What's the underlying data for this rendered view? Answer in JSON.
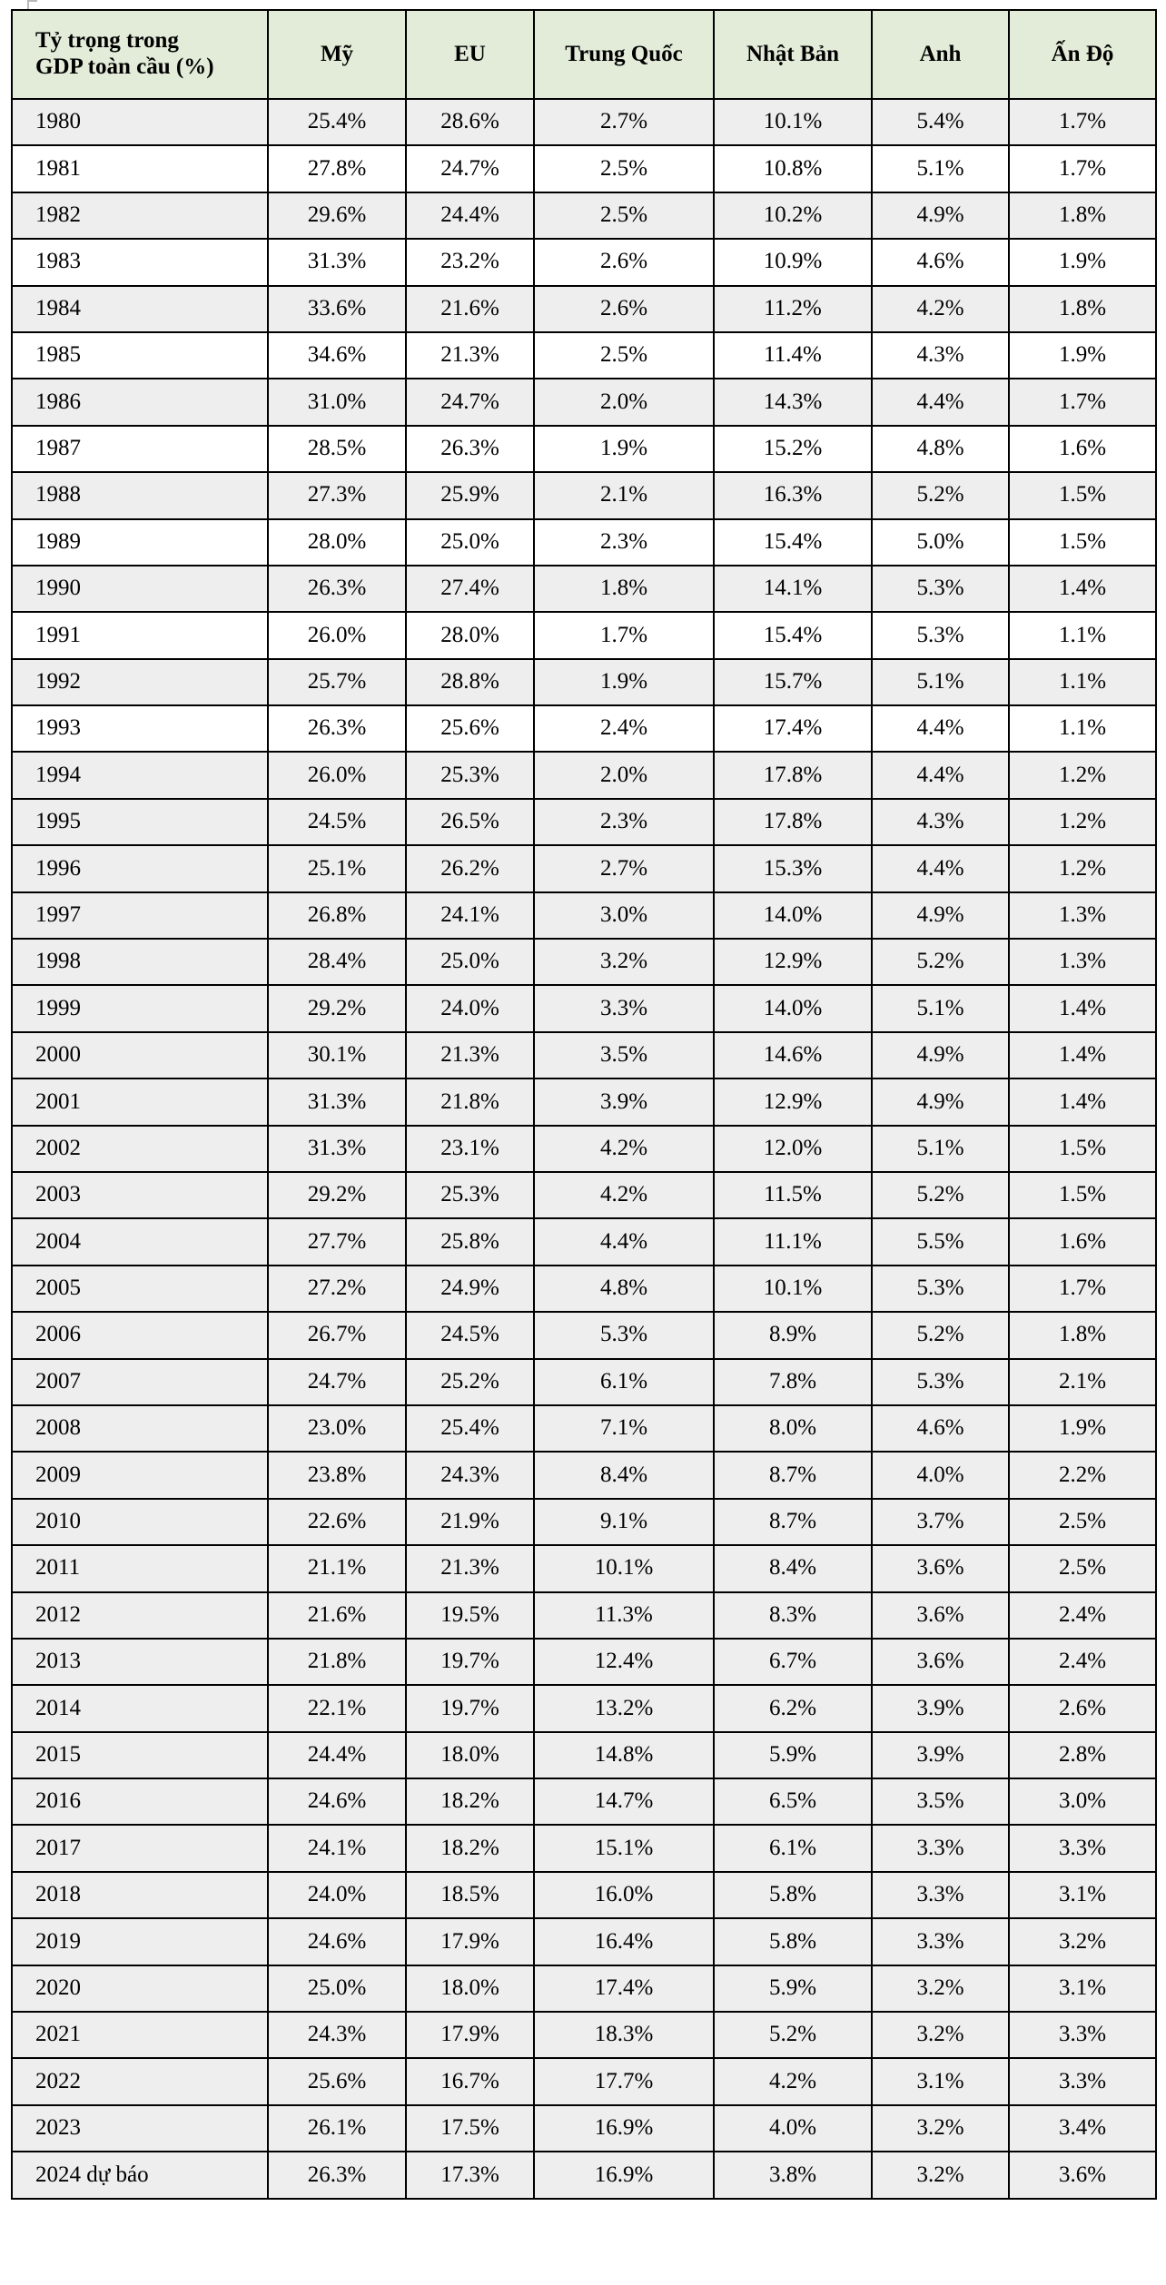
{
  "table": {
    "corner_label": "Tỷ trọng trong GDP toàn cầu (%)",
    "columns": [
      "Mỹ",
      "EU",
      "Trung Quốc",
      "Nhật Bản",
      "Anh",
      "Ấn Độ"
    ],
    "colors": {
      "header_bg": "#e2ecd8",
      "shaded_row_bg": "#eeeeee",
      "plain_row_bg": "#ffffff",
      "border": "#000000",
      "text": "#000000"
    },
    "rows": [
      {
        "year": "1980",
        "shaded": true,
        "values": [
          "25.4%",
          "28.6%",
          "2.7%",
          "10.1%",
          "5.4%",
          "1.7%"
        ]
      },
      {
        "year": "1981",
        "shaded": false,
        "values": [
          "27.8%",
          "24.7%",
          "2.5%",
          "10.8%",
          "5.1%",
          "1.7%"
        ]
      },
      {
        "year": "1982",
        "shaded": true,
        "values": [
          "29.6%",
          "24.4%",
          "2.5%",
          "10.2%",
          "4.9%",
          "1.8%"
        ]
      },
      {
        "year": "1983",
        "shaded": false,
        "values": [
          "31.3%",
          "23.2%",
          "2.6%",
          "10.9%",
          "4.6%",
          "1.9%"
        ]
      },
      {
        "year": "1984",
        "shaded": true,
        "values": [
          "33.6%",
          "21.6%",
          "2.6%",
          "11.2%",
          "4.2%",
          "1.8%"
        ]
      },
      {
        "year": "1985",
        "shaded": false,
        "values": [
          "34.6%",
          "21.3%",
          "2.5%",
          "11.4%",
          "4.3%",
          "1.9%"
        ]
      },
      {
        "year": "1986",
        "shaded": true,
        "values": [
          "31.0%",
          "24.7%",
          "2.0%",
          "14.3%",
          "4.4%",
          "1.7%"
        ]
      },
      {
        "year": "1987",
        "shaded": false,
        "values": [
          "28.5%",
          "26.3%",
          "1.9%",
          "15.2%",
          "4.8%",
          "1.6%"
        ]
      },
      {
        "year": "1988",
        "shaded": true,
        "values": [
          "27.3%",
          "25.9%",
          "2.1%",
          "16.3%",
          "5.2%",
          "1.5%"
        ]
      },
      {
        "year": "1989",
        "shaded": false,
        "values": [
          "28.0%",
          "25.0%",
          "2.3%",
          "15.4%",
          "5.0%",
          "1.5%"
        ]
      },
      {
        "year": "1990",
        "shaded": true,
        "values": [
          "26.3%",
          "27.4%",
          "1.8%",
          "14.1%",
          "5.3%",
          "1.4%"
        ]
      },
      {
        "year": "1991",
        "shaded": false,
        "values": [
          "26.0%",
          "28.0%",
          "1.7%",
          "15.4%",
          "5.3%",
          "1.1%"
        ]
      },
      {
        "year": "1992",
        "shaded": true,
        "values": [
          "25.7%",
          "28.8%",
          "1.9%",
          "15.7%",
          "5.1%",
          "1.1%"
        ]
      },
      {
        "year": "1993",
        "shaded": false,
        "values": [
          "26.3%",
          "25.6%",
          "2.4%",
          "17.4%",
          "4.4%",
          "1.1%"
        ]
      },
      {
        "year": "1994",
        "shaded": true,
        "values": [
          "26.0%",
          "25.3%",
          "2.0%",
          "17.8%",
          "4.4%",
          "1.2%"
        ]
      },
      {
        "year": "1995",
        "shaded": true,
        "values": [
          "24.5%",
          "26.5%",
          "2.3%",
          "17.8%",
          "4.3%",
          "1.2%"
        ]
      },
      {
        "year": "1996",
        "shaded": true,
        "values": [
          "25.1%",
          "26.2%",
          "2.7%",
          "15.3%",
          "4.4%",
          "1.2%"
        ]
      },
      {
        "year": "1997",
        "shaded": true,
        "values": [
          "26.8%",
          "24.1%",
          "3.0%",
          "14.0%",
          "4.9%",
          "1.3%"
        ]
      },
      {
        "year": "1998",
        "shaded": true,
        "values": [
          "28.4%",
          "25.0%",
          "3.2%",
          "12.9%",
          "5.2%",
          "1.3%"
        ]
      },
      {
        "year": "1999",
        "shaded": true,
        "values": [
          "29.2%",
          "24.0%",
          "3.3%",
          "14.0%",
          "5.1%",
          "1.4%"
        ]
      },
      {
        "year": "2000",
        "shaded": true,
        "values": [
          "30.1%",
          "21.3%",
          "3.5%",
          "14.6%",
          "4.9%",
          "1.4%"
        ]
      },
      {
        "year": "2001",
        "shaded": true,
        "values": [
          "31.3%",
          "21.8%",
          "3.9%",
          "12.9%",
          "4.9%",
          "1.4%"
        ]
      },
      {
        "year": "2002",
        "shaded": true,
        "values": [
          "31.3%",
          "23.1%",
          "4.2%",
          "12.0%",
          "5.1%",
          "1.5%"
        ]
      },
      {
        "year": "2003",
        "shaded": true,
        "values": [
          "29.2%",
          "25.3%",
          "4.2%",
          "11.5%",
          "5.2%",
          "1.5%"
        ]
      },
      {
        "year": "2004",
        "shaded": true,
        "values": [
          "27.7%",
          "25.8%",
          "4.4%",
          "11.1%",
          "5.5%",
          "1.6%"
        ]
      },
      {
        "year": "2005",
        "shaded": true,
        "values": [
          "27.2%",
          "24.9%",
          "4.8%",
          "10.1%",
          "5.3%",
          "1.7%"
        ]
      },
      {
        "year": "2006",
        "shaded": true,
        "values": [
          "26.7%",
          "24.5%",
          "5.3%",
          "8.9%",
          "5.2%",
          "1.8%"
        ]
      },
      {
        "year": "2007",
        "shaded": true,
        "values": [
          "24.7%",
          "25.2%",
          "6.1%",
          "7.8%",
          "5.3%",
          "2.1%"
        ]
      },
      {
        "year": "2008",
        "shaded": true,
        "values": [
          "23.0%",
          "25.4%",
          "7.1%",
          "8.0%",
          "4.6%",
          "1.9%"
        ]
      },
      {
        "year": "2009",
        "shaded": true,
        "values": [
          "23.8%",
          "24.3%",
          "8.4%",
          "8.7%",
          "4.0%",
          "2.2%"
        ]
      },
      {
        "year": "2010",
        "shaded": true,
        "values": [
          "22.6%",
          "21.9%",
          "9.1%",
          "8.7%",
          "3.7%",
          "2.5%"
        ]
      },
      {
        "year": "2011",
        "shaded": true,
        "values": [
          "21.1%",
          "21.3%",
          "10.1%",
          "8.4%",
          "3.6%",
          "2.5%"
        ]
      },
      {
        "year": "2012",
        "shaded": true,
        "values": [
          "21.6%",
          "19.5%",
          "11.3%",
          "8.3%",
          "3.6%",
          "2.4%"
        ]
      },
      {
        "year": "2013",
        "shaded": true,
        "values": [
          "21.8%",
          "19.7%",
          "12.4%",
          "6.7%",
          "3.6%",
          "2.4%"
        ]
      },
      {
        "year": "2014",
        "shaded": true,
        "values": [
          "22.1%",
          "19.7%",
          "13.2%",
          "6.2%",
          "3.9%",
          "2.6%"
        ]
      },
      {
        "year": "2015",
        "shaded": true,
        "values": [
          "24.4%",
          "18.0%",
          "14.8%",
          "5.9%",
          "3.9%",
          "2.8%"
        ]
      },
      {
        "year": "2016",
        "shaded": true,
        "values": [
          "24.6%",
          "18.2%",
          "14.7%",
          "6.5%",
          "3.5%",
          "3.0%"
        ]
      },
      {
        "year": "2017",
        "shaded": true,
        "values": [
          "24.1%",
          "18.2%",
          "15.1%",
          "6.1%",
          "3.3%",
          "3.3%"
        ]
      },
      {
        "year": "2018",
        "shaded": true,
        "values": [
          "24.0%",
          "18.5%",
          "16.0%",
          "5.8%",
          "3.3%",
          "3.1%"
        ]
      },
      {
        "year": "2019",
        "shaded": true,
        "values": [
          "24.6%",
          "17.9%",
          "16.4%",
          "5.8%",
          "3.3%",
          "3.2%"
        ]
      },
      {
        "year": "2020",
        "shaded": true,
        "values": [
          "25.0%",
          "18.0%",
          "17.4%",
          "5.9%",
          "3.2%",
          "3.1%"
        ]
      },
      {
        "year": "2021",
        "shaded": true,
        "values": [
          "24.3%",
          "17.9%",
          "18.3%",
          "5.2%",
          "3.2%",
          "3.3%"
        ]
      },
      {
        "year": "2022",
        "shaded": true,
        "values": [
          "25.6%",
          "16.7%",
          "17.7%",
          "4.2%",
          "3.1%",
          "3.3%"
        ]
      },
      {
        "year": "2023",
        "shaded": true,
        "values": [
          "26.1%",
          "17.5%",
          "16.9%",
          "4.0%",
          "3.2%",
          "3.4%"
        ]
      },
      {
        "year": "2024 dự báo",
        "shaded": true,
        "values": [
          "26.3%",
          "17.3%",
          "16.9%",
          "3.8%",
          "3.2%",
          "3.6%"
        ]
      }
    ]
  }
}
